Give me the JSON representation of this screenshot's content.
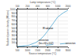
{
  "chart_data": {
    "type": "line",
    "xlabel": "Source temperature (°C)",
    "ylabel": "Radiated power density (W/cm²)",
    "x2label": "Lamp temperature (°C)",
    "x": [
      500,
      600,
      700,
      800,
      900,
      1000,
      1100,
      1200,
      1400,
      1600,
      1800,
      2000,
      2200,
      2500,
      2800,
      3000
    ],
    "series": [
      {
        "color": "#77bbdd",
        "line_style": "solid",
        "values": [
          2,
          4,
          7,
          12,
          19,
          28,
          42,
          58,
          105,
          175,
          280,
          420,
          580,
          800,
          920,
          980
        ]
      },
      {
        "color": "#77bbdd",
        "line_style": "dashed",
        "values": [
          1,
          2,
          3,
          4,
          5,
          7,
          9,
          11,
          16,
          22,
          29,
          37,
          46,
          60,
          76,
          88
        ]
      }
    ],
    "xlim": [
      500,
      3000
    ],
    "ylim": [
      0,
      1000
    ],
    "xticks": [
      500,
      1000,
      1500,
      2000,
      2500,
      3000
    ],
    "yticks": [
      100,
      200,
      300,
      400,
      500,
      600,
      700,
      800,
      900,
      1000
    ],
    "x2ticks": [
      {
        "value": 500,
        "label": "100"
      },
      {
        "value": 1000,
        "label": "200"
      },
      {
        "value": 1500,
        "label": "400"
      },
      {
        "value": 2000,
        "label": "600"
      },
      {
        "value": 2500,
        "label": "1000"
      },
      {
        "value": 3000,
        "label": "2000"
      }
    ],
    "grid": true,
    "annotations": [
      {
        "text": "IR radiation",
        "x": 1700,
        "y": 420
      },
      {
        "text": "convection",
        "x": 1500,
        "y": 28
      },
      {
        "text": "(hα = hβ = 0.02)",
        "x": 1500,
        "y": 18
      },
      {
        "text": "convection",
        "x": 2850,
        "y": 95
      }
    ]
  }
}
